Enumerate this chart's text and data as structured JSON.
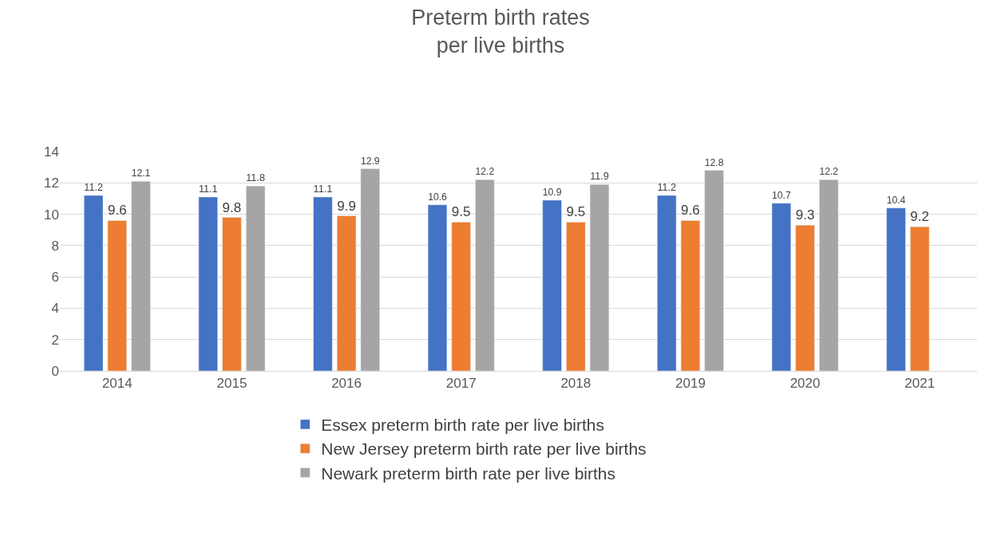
{
  "chart_data": {
    "type": "bar",
    "title": "Preterm birth rates\nper live births",
    "categories": [
      "2014",
      "2015",
      "2016",
      "2017",
      "2018",
      "2019",
      "2020",
      "2021"
    ],
    "series": [
      {
        "name": "Essex preterm birth rate per live births",
        "color": "#4472c4",
        "values": [
          11.2,
          11.1,
          11.1,
          10.6,
          10.9,
          11.2,
          10.7,
          10.4
        ]
      },
      {
        "name": "New Jersey preterm birth rate per live births",
        "color": "#ed7d31",
        "values": [
          9.6,
          9.8,
          9.9,
          9.5,
          9.5,
          9.6,
          9.3,
          9.2
        ]
      },
      {
        "name": "Newark preterm birth rate per live births",
        "color": "#a5a5a5",
        "values": [
          12.1,
          11.8,
          12.9,
          12.2,
          11.9,
          12.8,
          12.2,
          null
        ]
      }
    ],
    "ylim": [
      0,
      14
    ],
    "yticks": [
      0,
      2,
      4,
      6,
      8,
      10,
      12,
      14
    ],
    "grid": "y",
    "legend": "bottom",
    "data_labels": true
  }
}
